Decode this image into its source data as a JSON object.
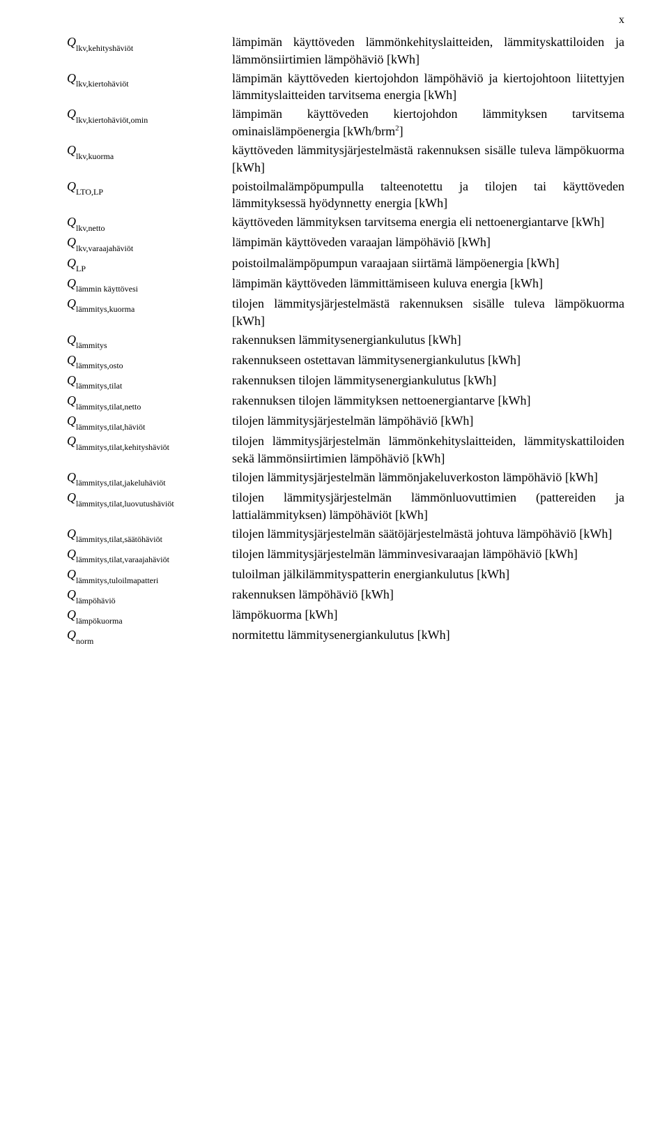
{
  "page_marker": "x",
  "symbol_base": "Q",
  "entries": [
    {
      "sub": "lkv,kehityshäviöt",
      "desc": "lämpimän käyttöveden lämmönkehityslaitteiden, lämmityskattiloiden ja lämmönsiirtimien lämpöhäviö [kWh]"
    },
    {
      "sub": "lkv,kiertohäviöt",
      "desc": "lämpimän käyttöveden kiertojohdon lämpöhäviö ja kiertojohtoon liitettyjen lämmityslaitteiden tarvitsema energia [kWh]"
    },
    {
      "sub": "lkv,kiertohäviöt,omin",
      "desc": "lämpimän käyttöveden kiertojohdon lämmityksen tarvitsema ominaislämpöenergia [kWh/brm2]",
      "sup_after": "brm",
      "sup_text": "2"
    },
    {
      "sub": "lkv,kuorma",
      "desc": "käyttöveden lämmitysjärjestelmästä rakennuksen sisälle tuleva lämpökuorma [kWh]"
    },
    {
      "sub": "LTO,LP",
      "desc": "poistoilmalämpöpumpulla talteenotettu ja tilojen tai käyttöveden lämmityksessä hyödynnetty energia [kWh]"
    },
    {
      "sub": "lkv,netto",
      "desc": "käyttöveden lämmityksen tarvitsema energia eli nettoenergiantarve [kWh]"
    },
    {
      "sub": "lkv,varaajahäviöt",
      "desc": "lämpimän käyttöveden varaajan lämpöhäviö [kWh]"
    },
    {
      "sub": "LP",
      "desc": "poistoilmalämpöpumpun varaajaan siirtämä lämpöenergia [kWh]"
    },
    {
      "sub": "lämmin käyttövesi",
      "desc": "lämpimän käyttöveden lämmittämiseen kuluva energia [kWh]"
    },
    {
      "sub": "lämmitys,kuorma",
      "desc": "tilojen lämmitysjärjestelmästä rakennuksen sisälle tuleva lämpökuorma [kWh]"
    },
    {
      "sub": "lämmitys",
      "desc": "rakennuksen lämmitysenergiankulutus [kWh]"
    },
    {
      "sub": "lämmitys,osto",
      "desc": "rakennukseen ostettavan lämmitysenergiankulutus [kWh]"
    },
    {
      "sub": "lämmitys,tilat",
      "desc": "rakennuksen tilojen lämmitysenergiankulutus [kWh]"
    },
    {
      "sub": "lämmitys,tilat,netto",
      "desc": "rakennuksen tilojen lämmityksen nettoenergiantarve [kWh]"
    },
    {
      "sub": "lämmitys,tilat,häviöt",
      "desc": "tilojen lämmitysjärjestelmän lämpöhäviö [kWh]"
    },
    {
      "sub": "lämmitys,tilat,kehityshäviöt",
      "desc": "tilojen lämmitysjärjestelmän lämmönkehityslaitteiden, lämmityskattiloiden sekä lämmönsiirtimien lämpöhäviö [kWh]"
    },
    {
      "sub": "lämmitys,tilat,jakeluhäviöt",
      "desc": "tilojen lämmitysjärjestelmän lämmönjakeluverkoston lämpöhäviö [kWh]"
    },
    {
      "sub": "lämmitys,tilat,luovutushäviöt",
      "desc": "tilojen lämmitysjärjestelmän lämmönluovuttimien (pattereiden ja lattialämmityksen) lämpöhäviöt [kWh]"
    },
    {
      "sub": "lämmitys,tilat,säätöhäviöt",
      "desc": "tilojen lämmitysjärjestelmän säätöjärjestelmästä johtuva lämpöhäviö [kWh]"
    },
    {
      "sub": "lämmitys,tilat,varaajahäviöt",
      "desc": "tilojen lämmitysjärjestelmän lämminvesivaraajan lämpöhäviö [kWh]"
    },
    {
      "sub": "lämmitys,tuloilmapatteri",
      "desc": "tuloilman jälkilämmityspatterin energiankulutus [kWh]"
    },
    {
      "sub": "lämpöhäviö",
      "desc": "rakennuksen lämpöhäviö [kWh]"
    },
    {
      "sub": "lämpökuorma",
      "desc": "lämpökuorma [kWh]"
    },
    {
      "sub": "norm",
      "desc": "normitettu lämmitysenergiankulutus [kWh]"
    }
  ]
}
